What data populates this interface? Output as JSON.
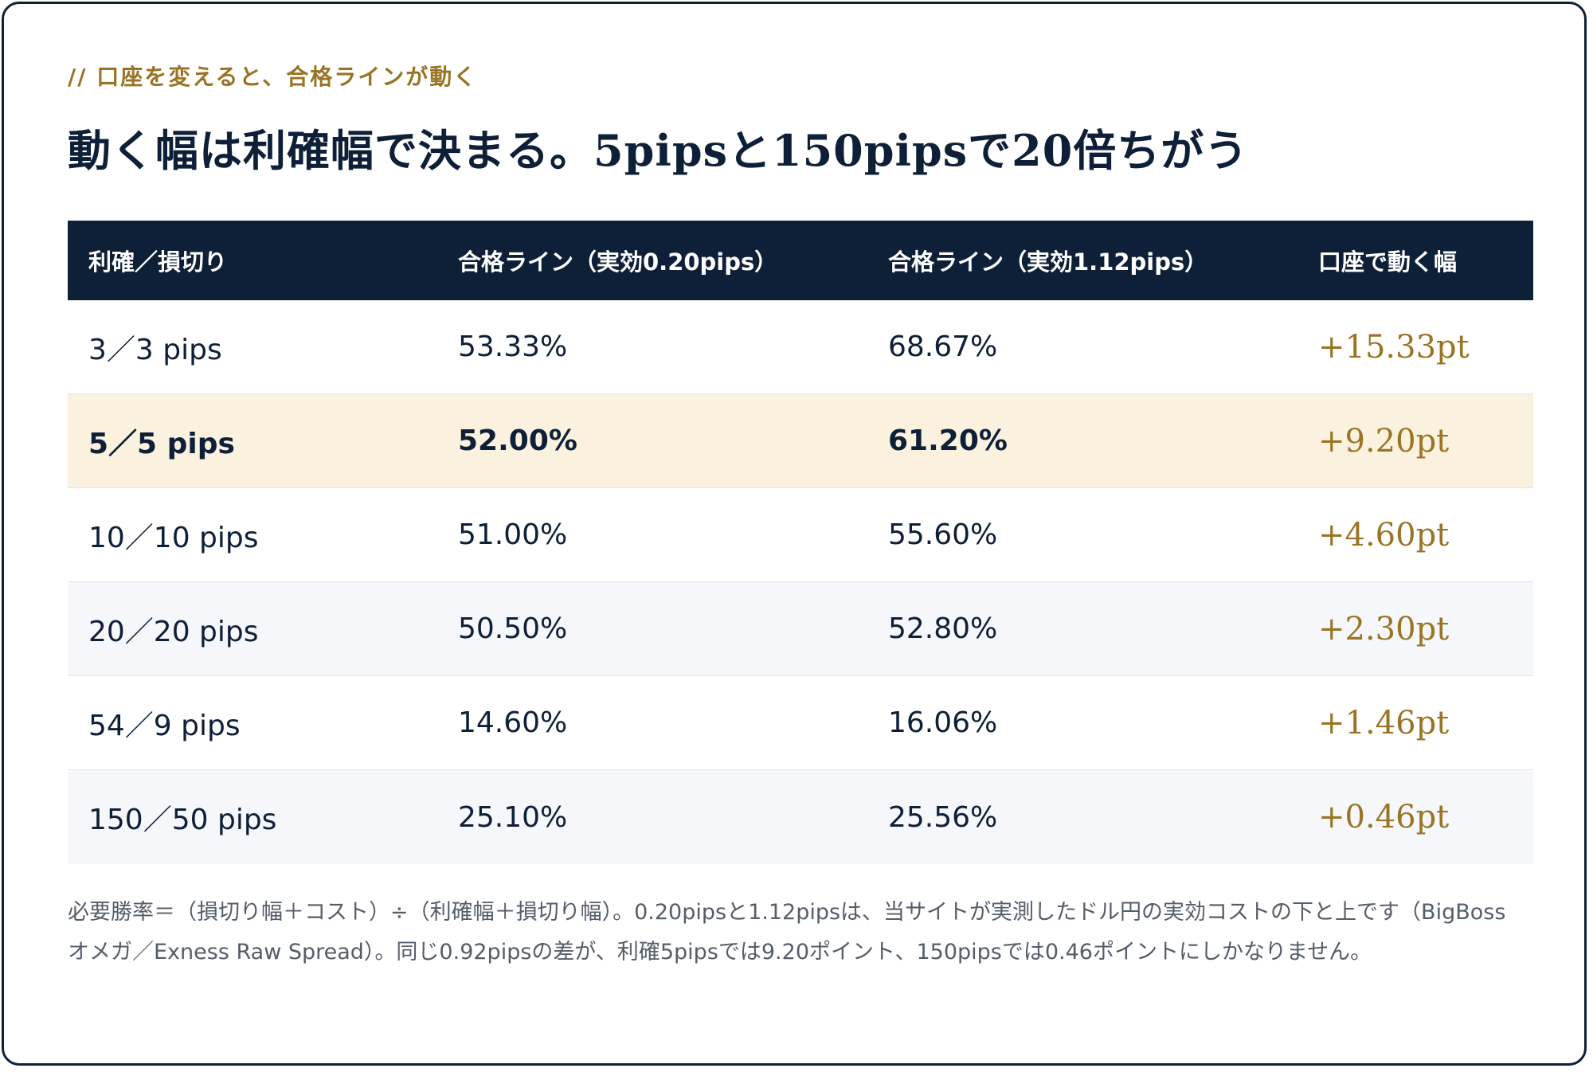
{
  "eyebrow": "// 口座を変えると、合格ラインが動く",
  "heading": "動く幅は利確幅で決まる。5pipsと150pipsで20倍ちがう",
  "table": {
    "headers": [
      "利確／損切り",
      "合格ライン（実効0.20pips）",
      "合格ライン（実効1.12pips）",
      "口座で動く幅"
    ],
    "rows": [
      {
        "tp_sl": "3／3 pips",
        "line_020": "53.33%",
        "line_112": "68.67%",
        "diff": "+15.33pt"
      },
      {
        "tp_sl": "5／5 pips",
        "line_020": "52.00%",
        "line_112": "61.20%",
        "diff": "+9.20pt",
        "highlight": true
      },
      {
        "tp_sl": "10／10 pips",
        "line_020": "51.00%",
        "line_112": "55.60%",
        "diff": "+4.60pt"
      },
      {
        "tp_sl": "20／20 pips",
        "line_020": "50.50%",
        "line_112": "52.80%",
        "diff": "+2.30pt"
      },
      {
        "tp_sl": "54／9 pips",
        "line_020": "14.60%",
        "line_112": "16.06%",
        "diff": "+1.46pt"
      },
      {
        "tp_sl": "150／50 pips",
        "line_020": "25.10%",
        "line_112": "25.56%",
        "diff": "+0.46pt"
      }
    ]
  },
  "note": "必要勝率＝（損切り幅＋コスト）÷（利確幅＋損切り幅）。0.20pipsと1.12pipsは、当サイトが実測したドル円の実効コストの下と上です（BigBoss オメガ／Exness Raw Spread）。同じ0.92pipsの差が、利確5pipsでは9.20ポイント、150pipsでは0.46ポイントにしかなりません。",
  "colors": {
    "navy": "#0e1f38",
    "gold": "#9a7424",
    "highlight_row": "#faf2df",
    "alt_row": "#f5f7fa"
  }
}
